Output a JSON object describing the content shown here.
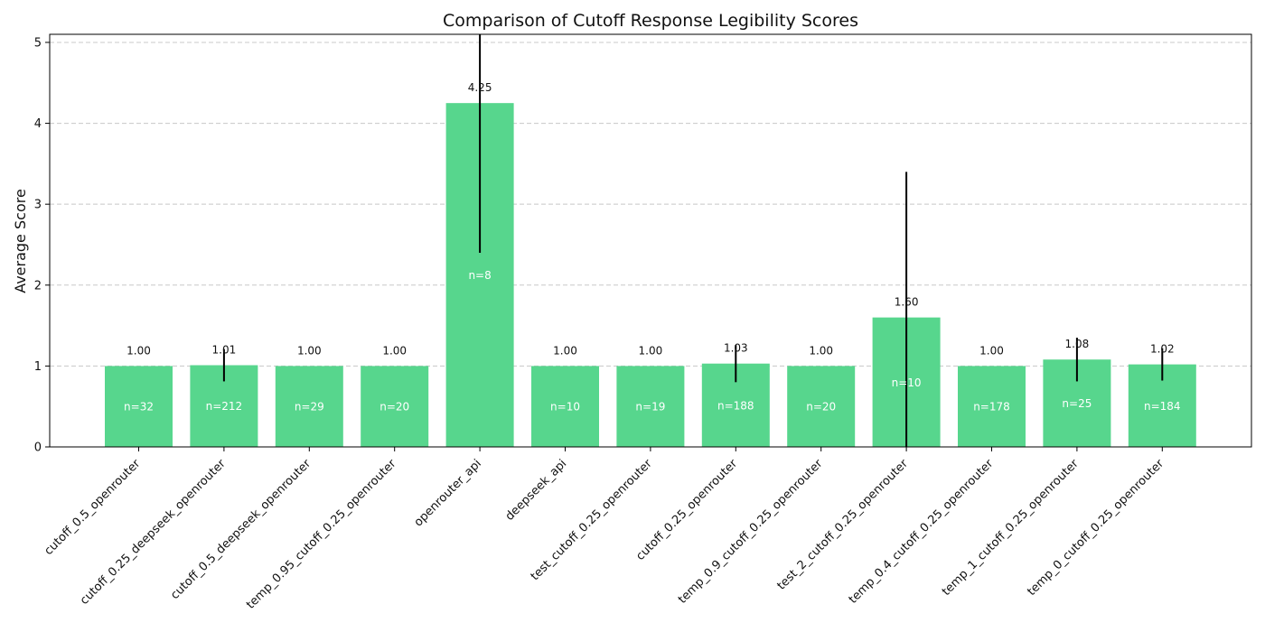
{
  "chart_data": {
    "type": "bar",
    "title": "Comparison of Cutoff Response Legibility Scores",
    "xlabel": "",
    "ylabel": "Average Score",
    "ylim": [
      0,
      5.1
    ],
    "yticks": [
      0,
      1,
      2,
      3,
      4,
      5
    ],
    "grid": true,
    "bar_color": "#57d68d",
    "categories": [
      "cutoff_0.5_openrouter",
      "cutoff_0.25_deepseek_openrouter",
      "cutoff_0.5_deepseek_openrouter",
      "temp_0.95_cutoff_0.25_openrouter",
      "openrouter_api",
      "deepseek_api",
      "test_cutoff_0.25_openrouter",
      "cutoff_0.25_openrouter",
      "temp_0.9_cutoff_0.25_openrouter",
      "test_2_cutoff_0.25_openrouter",
      "temp_0.4_cutoff_0.25_openrouter",
      "temp_1_cutoff_0.25_openrouter",
      "temp_0_cutoff_0.25_openrouter"
    ],
    "values": [
      1.0,
      1.01,
      1.0,
      1.0,
      4.25,
      1.0,
      1.0,
      1.03,
      1.0,
      1.6,
      1.0,
      1.08,
      1.02
    ],
    "value_labels": [
      "1.00",
      "1.01",
      "1.00",
      "1.00",
      "4.25",
      "1.00",
      "1.00",
      "1.03",
      "1.00",
      "1.60",
      "1.00",
      "1.08",
      "1.02"
    ],
    "errors": [
      0,
      0.2,
      0,
      0,
      1.85,
      0,
      0,
      0.23,
      0,
      1.8,
      0,
      0.27,
      0.2
    ],
    "counts": [
      "n=32",
      "n=212",
      "n=29",
      "n=20",
      "n=8",
      "n=10",
      "n=19",
      "n=188",
      "n=20",
      "n=10",
      "n=178",
      "n=25",
      "n=184"
    ]
  }
}
